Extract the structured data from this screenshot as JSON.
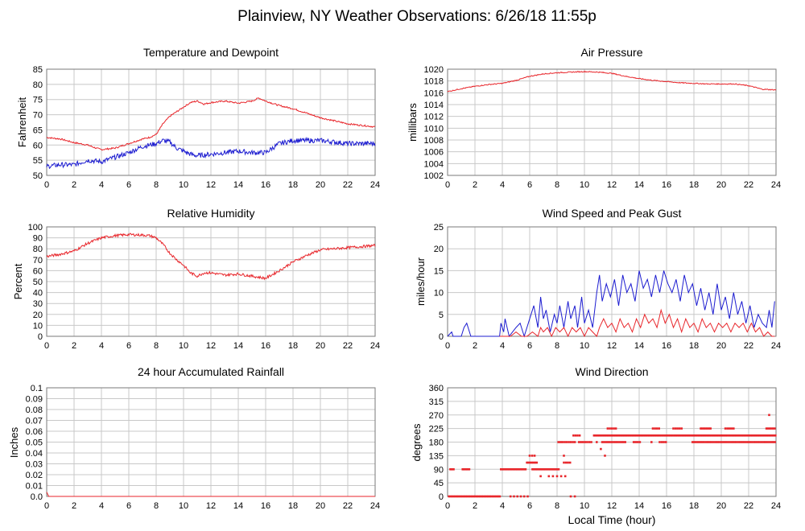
{
  "title": "Plainview, NY Weather Observations: 6/26/18 11:55p",
  "xlabel": "Local Time (hour)",
  "colors": {
    "red": "#e8262b",
    "blue": "#1c1cd0",
    "grid": "#c8c8c8",
    "frame": "#7a7a7a"
  },
  "chart_data": [
    {
      "id": "temp",
      "type": "line",
      "title": "Temperature and Dewpoint",
      "ylabel": "Fahrenheit",
      "xlim": [
        0,
        24
      ],
      "ylim": [
        50,
        85
      ],
      "xticks": [
        0,
        2,
        4,
        6,
        8,
        10,
        12,
        14,
        16,
        18,
        20,
        22,
        24
      ],
      "yticks": [
        50,
        55,
        60,
        65,
        70,
        75,
        80,
        85
      ],
      "series": [
        {
          "color": "red",
          "noise": 0.25,
          "x": [
            0,
            1,
            2,
            3,
            3.6,
            4,
            5,
            6,
            7,
            7.5,
            8,
            8.5,
            9,
            9.5,
            10,
            10.5,
            11,
            11.5,
            12,
            13,
            14,
            15,
            15.5,
            16,
            17,
            18,
            19,
            20,
            21,
            22,
            23,
            24
          ],
          "y": [
            62.5,
            62,
            60.8,
            60,
            59,
            58.5,
            59,
            60.5,
            62,
            62.5,
            63.5,
            67,
            69.5,
            71,
            72.5,
            74,
            74.5,
            73.5,
            74,
            74.5,
            73.8,
            74.5,
            75.5,
            74.5,
            73,
            72,
            70.5,
            69,
            68,
            67,
            66.5,
            66
          ]
        },
        {
          "color": "blue",
          "noise": 0.8,
          "x": [
            0,
            1,
            2,
            3,
            4,
            5,
            6,
            7,
            8,
            8.5,
            9,
            9.5,
            10,
            10.5,
            11,
            12,
            13,
            14,
            15,
            16,
            17,
            18,
            19,
            20,
            21,
            22,
            23,
            24
          ],
          "y": [
            53,
            53.5,
            53.5,
            55,
            54.5,
            56,
            57.5,
            59.5,
            60.5,
            61.5,
            61,
            59,
            58,
            57,
            56.5,
            57,
            57.5,
            58,
            57.5,
            57.5,
            60.5,
            61.5,
            61.5,
            61.5,
            61,
            60.5,
            60.5,
            60.5
          ]
        }
      ]
    },
    {
      "id": "pressure",
      "type": "line",
      "title": "Air Pressure",
      "ylabel": "millibars",
      "xlim": [
        0,
        24
      ],
      "ylim": [
        1002,
        1020
      ],
      "xticks": [
        0,
        2,
        4,
        6,
        8,
        10,
        12,
        14,
        16,
        18,
        20,
        22,
        24
      ],
      "yticks": [
        1002,
        1004,
        1006,
        1008,
        1010,
        1012,
        1014,
        1016,
        1018,
        1020
      ],
      "series": [
        {
          "color": "red",
          "noise": 0.08,
          "x": [
            0,
            1,
            2,
            3,
            4,
            5,
            6,
            7,
            8,
            9,
            10,
            11,
            12,
            13,
            14,
            15,
            16,
            17,
            18,
            19,
            20,
            21,
            22,
            23,
            24
          ],
          "y": [
            1016.2,
            1016.7,
            1017.1,
            1017.4,
            1017.6,
            1018.1,
            1018.8,
            1019.2,
            1019.4,
            1019.5,
            1019.6,
            1019.5,
            1019.3,
            1018.8,
            1018.4,
            1018.1,
            1017.9,
            1017.7,
            1017.6,
            1017.5,
            1017.5,
            1017.5,
            1017.2,
            1016.6,
            1016.5
          ]
        }
      ]
    },
    {
      "id": "humidity",
      "type": "line",
      "title": "Relative Humidity",
      "ylabel": "Percent",
      "xlim": [
        0,
        24
      ],
      "ylim": [
        0,
        100
      ],
      "xticks": [
        0,
        2,
        4,
        6,
        8,
        10,
        12,
        14,
        16,
        18,
        20,
        22,
        24
      ],
      "yticks": [
        0,
        10,
        20,
        30,
        40,
        50,
        60,
        70,
        80,
        90,
        100
      ],
      "series": [
        {
          "color": "red",
          "noise": 1.2,
          "x": [
            0,
            1,
            2,
            3,
            4,
            5,
            6,
            7,
            7.5,
            8,
            8.5,
            9,
            9.5,
            10,
            10.5,
            11,
            11.5,
            12,
            13,
            14,
            15,
            16,
            17,
            18,
            19,
            20,
            21,
            22,
            23,
            24
          ],
          "y": [
            73,
            75,
            78,
            85,
            90,
            92,
            93,
            92.5,
            92,
            90,
            84,
            76,
            70,
            65,
            58,
            55,
            58,
            58,
            56,
            57,
            55,
            53,
            60,
            68,
            74,
            79,
            80,
            81,
            82,
            83
          ]
        }
      ]
    },
    {
      "id": "wind",
      "type": "line",
      "title": "Wind Speed and Peak Gust",
      "ylabel": "miles/hour",
      "xlim": [
        0,
        24
      ],
      "ylim": [
        0,
        25
      ],
      "xticks": [
        0,
        2,
        4,
        6,
        8,
        10,
        12,
        14,
        16,
        18,
        20,
        22,
        24
      ],
      "yticks": [
        0,
        5,
        10,
        15,
        20,
        25
      ],
      "series": [
        {
          "color": "blue",
          "noise": 0,
          "x": [
            0,
            0.3,
            0.4,
            0.6,
            0.7,
            1.0,
            1.2,
            1.4,
            1.5,
            1.7,
            2.0,
            3.8,
            3.9,
            4.1,
            4.2,
            4.5,
            5.0,
            5.3,
            5.6,
            6.0,
            6.3,
            6.6,
            6.8,
            7.0,
            7.2,
            7.5,
            7.8,
            8.0,
            8.2,
            8.5,
            8.8,
            9.0,
            9.3,
            9.5,
            9.8,
            10.0,
            10.3,
            10.6,
            10.9,
            11.1,
            11.3,
            11.6,
            11.9,
            12.2,
            12.5,
            12.8,
            13.1,
            13.4,
            13.7,
            14.0,
            14.3,
            14.6,
            14.9,
            15.2,
            15.5,
            15.8,
            16.1,
            16.4,
            16.7,
            17.0,
            17.3,
            17.6,
            17.9,
            18.2,
            18.5,
            18.8,
            19.1,
            19.4,
            19.7,
            20.0,
            20.3,
            20.6,
            20.9,
            21.2,
            21.5,
            21.8,
            22.1,
            22.4,
            22.7,
            23.0,
            23.3,
            23.5,
            23.7,
            23.9
          ],
          "y": [
            0,
            1,
            0,
            0,
            0,
            0,
            2,
            3,
            2,
            0,
            0,
            0,
            3,
            1,
            4,
            0,
            2,
            3,
            0,
            4,
            7,
            2,
            9,
            4,
            6,
            1,
            5,
            3,
            7,
            2,
            8,
            4,
            7,
            2,
            9,
            3,
            6,
            2,
            10,
            14,
            8,
            12,
            9,
            13,
            7,
            14,
            10,
            12,
            8,
            15,
            11,
            13,
            9,
            14,
            10,
            15,
            12,
            10,
            13,
            8,
            14,
            10,
            12,
            7,
            11,
            6,
            10,
            5,
            12,
            6,
            9,
            4,
            10,
            5,
            8,
            3,
            7,
            2,
            5,
            3,
            2,
            6,
            2,
            8
          ]
        },
        {
          "color": "red",
          "noise": 0,
          "x": [
            3.8,
            4.2,
            4.6,
            5.0,
            5.4,
            5.8,
            6.2,
            6.6,
            6.8,
            7.0,
            7.3,
            7.6,
            7.9,
            8.2,
            8.5,
            8.8,
            9.1,
            9.4,
            9.7,
            10.0,
            10.3,
            10.6,
            10.9,
            11.1,
            11.4,
            11.7,
            12.0,
            12.3,
            12.6,
            12.9,
            13.2,
            13.5,
            13.8,
            14.1,
            14.4,
            14.7,
            15.0,
            15.3,
            15.6,
            15.9,
            16.2,
            16.5,
            16.8,
            17.1,
            17.4,
            17.7,
            18.0,
            18.3,
            18.6,
            18.9,
            19.2,
            19.5,
            19.8,
            20.1,
            20.4,
            20.7,
            21.0,
            21.3,
            21.6,
            21.9,
            22.2,
            22.5,
            22.8,
            23.1,
            23.4,
            23.7,
            23.9
          ],
          "y": [
            0,
            0,
            0,
            1,
            0,
            0,
            1,
            0,
            2,
            1,
            2,
            0,
            2,
            1,
            2,
            0,
            2,
            1,
            2,
            0,
            2,
            1,
            0,
            2,
            4,
            2,
            3,
            1,
            4,
            2,
            3,
            1,
            4,
            2,
            5,
            3,
            4,
            2,
            6,
            3,
            5,
            2,
            4,
            1,
            4,
            2,
            3,
            1,
            4,
            2,
            3,
            1,
            3,
            2,
            3,
            1,
            3,
            2,
            3,
            1,
            3,
            1,
            2,
            0,
            1,
            0,
            0
          ]
        }
      ]
    },
    {
      "id": "rain",
      "type": "line",
      "title": "24 hour Accumulated Rainfall",
      "ylabel": "Inches",
      "xlim": [
        0,
        24
      ],
      "ylim": [
        0,
        0.1
      ],
      "xticks": [
        0,
        2,
        4,
        6,
        8,
        10,
        12,
        14,
        16,
        18,
        20,
        22,
        24
      ],
      "yticks": [
        0,
        0.01,
        0.02,
        0.03,
        0.04,
        0.05,
        0.06,
        0.07,
        0.08,
        0.09,
        0.1
      ],
      "ytick_labels": [
        "0.0",
        "0.01",
        "0.02",
        "0.03",
        "0.04",
        "0.05",
        "0.06",
        "0.07",
        "0.08",
        "0.09",
        "0.1"
      ],
      "series": [
        {
          "color": "red",
          "noise": 0,
          "x": [
            0,
            0.15,
            24
          ],
          "y": [
            0.004,
            0,
            0
          ]
        }
      ]
    },
    {
      "id": "winddir",
      "type": "scatter",
      "title": "Wind Direction",
      "ylabel": "degrees",
      "xlim": [
        0,
        24
      ],
      "ylim": [
        0,
        360
      ],
      "xticks": [
        0,
        2,
        4,
        6,
        8,
        10,
        12,
        14,
        16,
        18,
        20,
        22,
        24
      ],
      "yticks": [
        0,
        45,
        90,
        135,
        180,
        225,
        270,
        315,
        360
      ],
      "points": [
        {
          "x0": 0.1,
          "x1": 3.9,
          "step": 0.12,
          "y": 0
        },
        {
          "x0": 0.2,
          "x1": 0.45,
          "step": 0.12,
          "y": 90
        },
        {
          "x0": 1.1,
          "x1": 1.6,
          "step": 0.12,
          "y": 90
        },
        {
          "x0": 3.9,
          "x1": 5.8,
          "step": 0.12,
          "y": 90
        },
        {
          "x0": 4.6,
          "x1": 6.0,
          "step": 0.25,
          "y": 0
        },
        {
          "x0": 5.8,
          "x1": 6.6,
          "step": 0.12,
          "y": 112
        },
        {
          "x0": 6.0,
          "x1": 6.5,
          "step": 0.18,
          "y": 135
        },
        {
          "x0": 6.2,
          "x1": 8.2,
          "step": 0.12,
          "y": 90
        },
        {
          "x0": 7.4,
          "x1": 8.6,
          "step": 0.3,
          "y": 67
        },
        {
          "x0": 8.1,
          "x1": 9.3,
          "step": 0.15,
          "y": 180
        },
        {
          "x0": 8.5,
          "x1": 9.0,
          "step": 0.15,
          "y": 112
        },
        {
          "x0": 9.2,
          "x1": 9.7,
          "step": 0.15,
          "y": 202
        },
        {
          "x0": 9.6,
          "x1": 10.6,
          "step": 0.15,
          "y": 180
        },
        {
          "x0": 10.7,
          "x1": 24,
          "step": 0.13,
          "y": 202
        },
        {
          "x0": 11.3,
          "x1": 13.0,
          "step": 0.14,
          "y": 180
        },
        {
          "x0": 11.7,
          "x1": 12.3,
          "step": 0.15,
          "y": 225
        },
        {
          "x0": 13.6,
          "x1": 14.1,
          "step": 0.15,
          "y": 180
        },
        {
          "x0": 15.0,
          "x1": 15.5,
          "step": 0.15,
          "y": 225
        },
        {
          "x0": 15.5,
          "x1": 16.0,
          "step": 0.15,
          "y": 180
        },
        {
          "x0": 16.5,
          "x1": 17.2,
          "step": 0.15,
          "y": 225
        },
        {
          "x0": 17.9,
          "x1": 24,
          "step": 0.14,
          "y": 180
        },
        {
          "x0": 18.5,
          "x1": 19.3,
          "step": 0.12,
          "y": 225
        },
        {
          "x0": 20.3,
          "x1": 20.9,
          "step": 0.15,
          "y": 225
        },
        {
          "x0": 23.3,
          "x1": 24.0,
          "step": 0.12,
          "y": 225
        }
      ],
      "extra_points": [
        [
          14.9,
          180
        ],
        [
          8.5,
          135
        ],
        [
          6.8,
          67
        ],
        [
          23.5,
          270
        ],
        [
          9.0,
          0
        ],
        [
          9.3,
          0
        ],
        [
          11.2,
          157
        ],
        [
          11.5,
          135
        ],
        [
          10.9,
          180
        ]
      ]
    }
  ]
}
